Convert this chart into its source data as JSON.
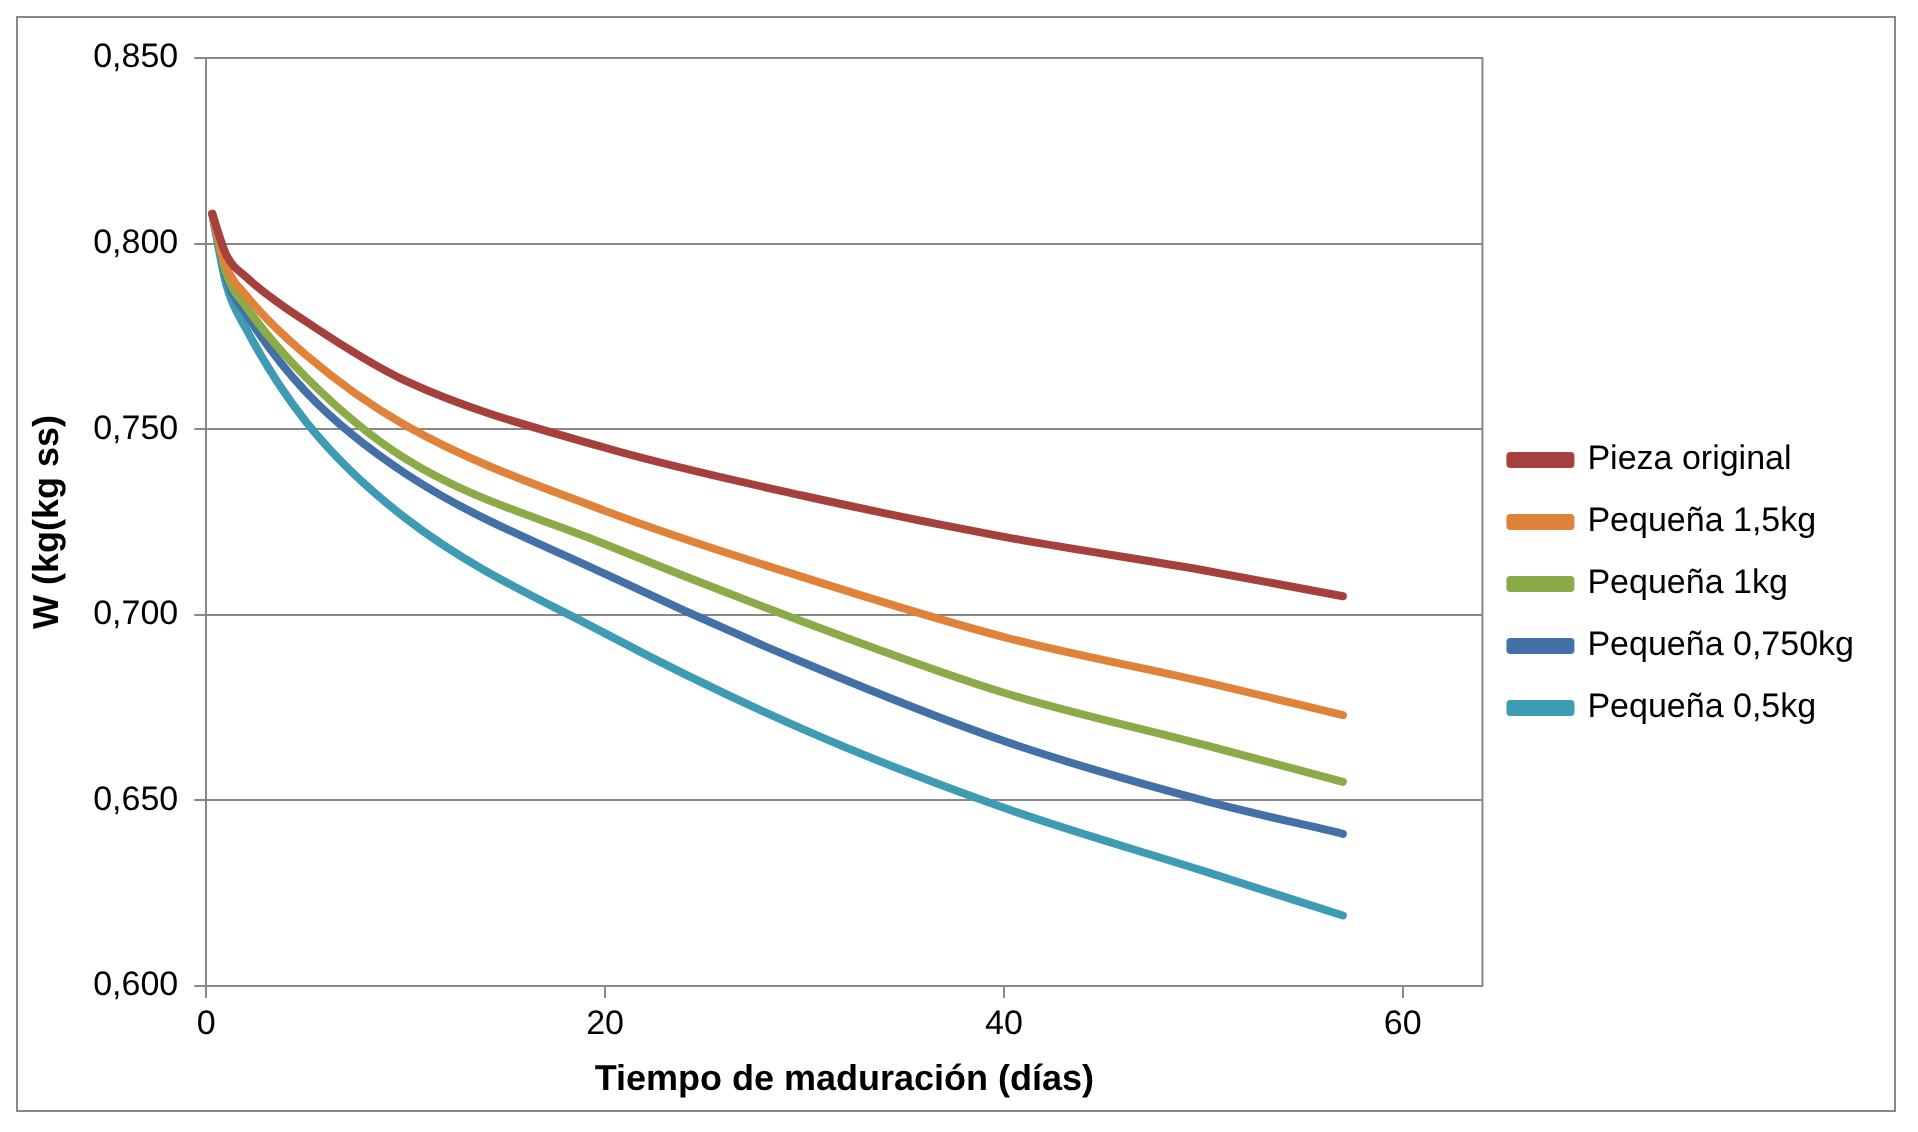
{
  "chart_data": {
    "type": "line",
    "xlabel": "Tiempo de maduración (días)",
    "ylabel": "W (kg(kg ss)",
    "x": [
      0.3,
      1,
      2,
      5,
      10,
      20,
      30,
      40,
      50,
      57
    ],
    "series": [
      {
        "name": "Pieza original",
        "color": "#a5403d",
        "values": [
          0.808,
          0.797,
          0.791,
          0.779,
          0.763,
          0.745,
          0.732,
          0.721,
          0.712,
          0.705
        ]
      },
      {
        "name": "Pequeña 1,5kg",
        "color": "#e0823a",
        "values": [
          0.808,
          0.794,
          0.786,
          0.77,
          0.751,
          0.728,
          0.71,
          0.694,
          0.682,
          0.673
        ]
      },
      {
        "name": "Pequeña 1kg",
        "color": "#8aab48",
        "values": [
          0.808,
          0.792,
          0.783,
          0.764,
          0.742,
          0.719,
          0.698,
          0.679,
          0.665,
          0.655
        ]
      },
      {
        "name": "Pequeña 0,750kg",
        "color": "#4470a8",
        "values": [
          0.808,
          0.791,
          0.781,
          0.76,
          0.738,
          0.711,
          0.687,
          0.666,
          0.65,
          0.641
        ]
      },
      {
        "name": "Pequeña 0,5kg",
        "color": "#3e9bb4",
        "values": [
          0.808,
          0.789,
          0.777,
          0.752,
          0.726,
          0.695,
          0.669,
          0.648,
          0.631,
          0.619
        ]
      }
    ],
    "xlim": [
      0,
      64
    ],
    "xticks": [
      0,
      20,
      40,
      60
    ],
    "ylim": [
      0.6,
      0.85
    ],
    "yticks": [
      {
        "value": 0.6,
        "label": "0,600"
      },
      {
        "value": 0.65,
        "label": "0,650"
      },
      {
        "value": 0.7,
        "label": "0,700"
      },
      {
        "value": 0.75,
        "label": "0,750"
      },
      {
        "value": 0.8,
        "label": "0,800"
      },
      {
        "value": 0.85,
        "label": "0,850"
      }
    ],
    "grid": "y",
    "legend": "right",
    "marker": "none",
    "line_style": "solid"
  }
}
